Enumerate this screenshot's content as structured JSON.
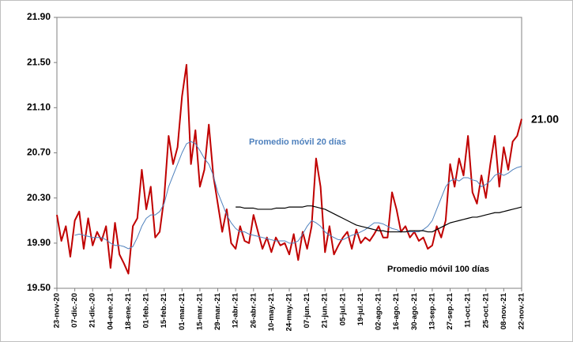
{
  "chart_data": {
    "type": "line",
    "categories": [
      "23-nov-20",
      null,
      null,
      null,
      "07-dic.-20",
      null,
      null,
      null,
      "21-dic.-20",
      null,
      null,
      null,
      "04-ene.-21",
      null,
      null,
      null,
      "18-ene.-21",
      null,
      null,
      null,
      "01-feb.-21",
      null,
      null,
      null,
      "15-feb.-21",
      null,
      null,
      null,
      "01-mar.-21",
      null,
      null,
      null,
      "15-mar.-21",
      null,
      null,
      null,
      "29-mar.-21",
      null,
      null,
      null,
      "12-abr.-21",
      null,
      null,
      null,
      "26-abr.-21",
      null,
      null,
      null,
      "10-may.-21",
      null,
      null,
      null,
      "24-may.-21",
      null,
      null,
      null,
      "07-jun.-21",
      null,
      null,
      null,
      "21-jun.-21",
      null,
      null,
      null,
      "05-jul.-21",
      null,
      null,
      null,
      "19-jul.-21",
      null,
      null,
      null,
      "02-ago.-21",
      null,
      null,
      null,
      "16-ago.-21",
      null,
      null,
      null,
      "30-ago.-21",
      null,
      null,
      null,
      "13-sep.-21",
      null,
      null,
      null,
      "27-sep.-21",
      null,
      null,
      null,
      "11-oct.-21",
      null,
      null,
      null,
      "25-oct.-21",
      null,
      null,
      null,
      "08-nov.-21",
      null,
      null,
      null,
      "22-nov.-21"
    ],
    "series": [
      {
        "color": "#c00000",
        "width": 2,
        "values": [
          20.15,
          19.92,
          20.05,
          19.78,
          20.1,
          20.18,
          19.85,
          20.12,
          19.88,
          20.0,
          19.92,
          20.05,
          19.68,
          20.08,
          19.8,
          19.72,
          19.63,
          20.05,
          20.12,
          20.55,
          20.2,
          20.4,
          19.95,
          20.0,
          20.3,
          20.85,
          20.6,
          20.75,
          21.2,
          21.48,
          20.6,
          20.9,
          20.4,
          20.55,
          20.95,
          20.5,
          20.25,
          20.0,
          20.2,
          19.9,
          19.85,
          20.05,
          19.92,
          19.9,
          20.15,
          20.0,
          19.85,
          19.95,
          19.82,
          19.95,
          19.88,
          19.9,
          19.8,
          19.98,
          19.75,
          20.0,
          19.85,
          20.05,
          20.65,
          20.4,
          19.82,
          20.05,
          19.8,
          19.88,
          19.95,
          20.0,
          19.85,
          20.02,
          19.9,
          19.95,
          19.92,
          19.98,
          20.05,
          19.95,
          19.95,
          20.35,
          20.2,
          20.0,
          20.05,
          19.95,
          20.0,
          19.92,
          19.95,
          19.85,
          19.88,
          20.05,
          19.95,
          20.1,
          20.6,
          20.4,
          20.65,
          20.5,
          20.85,
          20.35,
          20.25,
          20.5,
          20.3,
          20.6,
          20.85,
          20.4,
          20.75,
          20.55,
          20.8,
          20.85,
          21.0
        ],
        "value_labels": [
          null,
          null,
          null,
          null,
          null,
          null,
          null,
          null,
          null,
          null,
          null,
          null,
          null,
          null,
          null,
          null,
          null,
          null,
          null,
          null,
          null,
          null,
          null,
          null,
          null,
          null,
          null,
          null,
          null,
          null,
          null,
          null,
          null,
          null,
          null,
          null,
          null,
          null,
          null,
          null,
          null,
          null,
          null,
          null,
          null,
          null,
          null,
          null,
          null,
          null,
          null,
          null,
          null,
          null,
          null,
          null,
          null,
          null,
          null,
          null,
          null,
          null,
          null,
          null,
          null,
          null,
          null,
          null,
          null,
          null,
          null,
          null,
          null,
          null,
          null,
          null,
          null,
          null,
          null,
          null,
          null,
          null,
          null,
          null,
          null,
          null,
          null,
          null,
          null,
          null,
          null,
          null,
          null,
          null,
          null,
          null,
          null,
          null,
          null,
          null,
          null,
          null,
          null,
          null,
          "21.00"
        ]
      },
      {
        "name": "Promedio  móvil 20 días",
        "color": "#4f81bd",
        "width": 1,
        "values": [
          null,
          null,
          null,
          null,
          19.97,
          19.98,
          19.97,
          19.96,
          19.95,
          19.95,
          19.95,
          19.93,
          19.9,
          19.88,
          19.88,
          19.87,
          19.85,
          19.87,
          19.95,
          20.05,
          20.12,
          20.15,
          20.15,
          20.18,
          20.25,
          20.4,
          20.5,
          20.6,
          20.7,
          20.78,
          20.8,
          20.78,
          20.72,
          20.65,
          20.6,
          20.5,
          20.35,
          20.25,
          20.15,
          20.08,
          20.03,
          20.0,
          20.0,
          19.98,
          19.97,
          19.96,
          19.95,
          19.94,
          19.93,
          19.92,
          19.92,
          19.92,
          19.9,
          19.9,
          19.92,
          19.98,
          20.05,
          20.1,
          20.08,
          20.05,
          20.0,
          19.97,
          19.95,
          19.93,
          19.93,
          19.95,
          19.97,
          19.98,
          20.0,
          20.02,
          20.05,
          20.08,
          20.08,
          20.07,
          20.05,
          20.03,
          20.02,
          20.0,
          20.0,
          20.0,
          20.0,
          20.0,
          20.02,
          20.05,
          20.1,
          20.2,
          20.3,
          20.4,
          20.45,
          20.47,
          20.45,
          20.48,
          20.48,
          20.46,
          20.45,
          20.4,
          20.42,
          20.45,
          20.5,
          20.52,
          20.5,
          20.52,
          20.55,
          20.57,
          20.58
        ]
      },
      {
        "name": "Promedio  móvil 100 días",
        "color": "#000000",
        "width": 1.2,
        "values": [
          null,
          null,
          null,
          null,
          null,
          null,
          null,
          null,
          null,
          null,
          null,
          null,
          null,
          null,
          null,
          null,
          null,
          null,
          null,
          null,
          null,
          null,
          null,
          null,
          null,
          null,
          null,
          null,
          null,
          null,
          null,
          null,
          null,
          null,
          null,
          null,
          null,
          null,
          null,
          null,
          20.22,
          20.22,
          20.21,
          20.21,
          20.21,
          20.2,
          20.2,
          20.2,
          20.2,
          20.21,
          20.21,
          20.21,
          20.22,
          20.22,
          20.22,
          20.22,
          20.23,
          20.23,
          20.22,
          20.21,
          20.2,
          20.18,
          20.16,
          20.14,
          20.12,
          20.1,
          20.08,
          20.06,
          20.05,
          20.04,
          20.03,
          20.02,
          20.01,
          20.01,
          20.0,
          20.0,
          20.0,
          20.0,
          20.0,
          20.01,
          20.01,
          20.01,
          20.01,
          20.0,
          20.0,
          20.02,
          20.04,
          20.06,
          20.08,
          20.09,
          20.1,
          20.11,
          20.12,
          20.13,
          20.13,
          20.14,
          20.15,
          20.16,
          20.17,
          20.17,
          20.18,
          20.19,
          20.2,
          20.21,
          20.22
        ]
      }
    ],
    "ylim": [
      19.5,
      21.9
    ],
    "yticks": [
      {
        "value": 19.5,
        "label": "19.50"
      },
      {
        "value": 19.9,
        "label": "19.90"
      },
      {
        "value": 20.3,
        "label": "20.30"
      },
      {
        "value": 20.7,
        "label": "20.70"
      },
      {
        "value": 21.1,
        "label": "21.10"
      },
      {
        "value": 21.5,
        "label": "21.50"
      },
      {
        "value": 21.9,
        "label": "21.90"
      }
    ],
    "grid": false
  }
}
